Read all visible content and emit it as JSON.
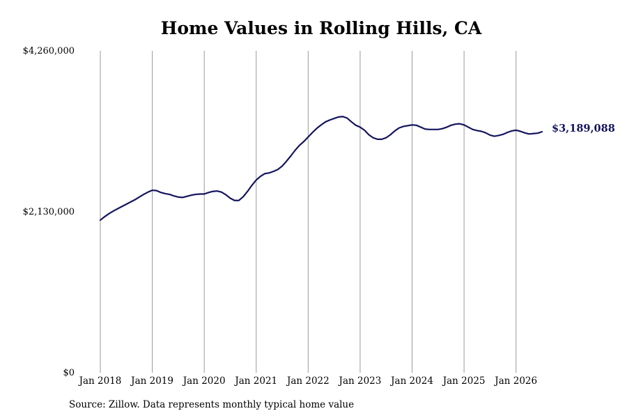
{
  "chart_data": {
    "type": "line",
    "title": "Home Values in Rolling Hills, CA",
    "xlabel": "",
    "ylabel": "",
    "ylim": [
      0,
      4260000
    ],
    "yticks": [
      {
        "value": 0,
        "label": "$0"
      },
      {
        "value": 2130000,
        "label": "$2,130,000"
      },
      {
        "value": 4260000,
        "label": "$4,260,000"
      }
    ],
    "xticks": [
      {
        "value": "2018-01",
        "label": "Jan 2018"
      },
      {
        "value": "2019-01",
        "label": "Jan 2019"
      },
      {
        "value": "2020-01",
        "label": "Jan 2020"
      },
      {
        "value": "2021-01",
        "label": "Jan 2021"
      },
      {
        "value": "2022-01",
        "label": "Jan 2022"
      },
      {
        "value": "2023-01",
        "label": "Jan 2023"
      },
      {
        "value": "2024-01",
        "label": "Jan 2024"
      },
      {
        "value": "2025-01",
        "label": "Jan 2025"
      },
      {
        "value": "2026-01",
        "label": "Jan 2026"
      }
    ],
    "xlim": [
      "2018-01",
      "2026-07"
    ],
    "grid": {
      "vertical": true,
      "horizontal": false
    },
    "line_color": "#14145e",
    "end_label": "$3,189,088",
    "series": [
      {
        "x": [
          "2018-01",
          "2018-02",
          "2018-03",
          "2018-04",
          "2018-05",
          "2018-06",
          "2018-07",
          "2018-08",
          "2018-09",
          "2018-10",
          "2018-11",
          "2018-12",
          "2019-01",
          "2019-02",
          "2019-03",
          "2019-04",
          "2019-05",
          "2019-06",
          "2019-07",
          "2019-08",
          "2019-09",
          "2019-10",
          "2019-11",
          "2019-12",
          "2020-01",
          "2020-02",
          "2020-03",
          "2020-04",
          "2020-05",
          "2020-06",
          "2020-07",
          "2020-08",
          "2020-09",
          "2020-10",
          "2020-11",
          "2020-12",
          "2021-01",
          "2021-02",
          "2021-03",
          "2021-04",
          "2021-05",
          "2021-06",
          "2021-07",
          "2021-08",
          "2021-09",
          "2021-10",
          "2021-11",
          "2021-12",
          "2022-01",
          "2022-02",
          "2022-03",
          "2022-04",
          "2022-05",
          "2022-06",
          "2022-07",
          "2022-08",
          "2022-09",
          "2022-10",
          "2022-11",
          "2022-12",
          "2023-01",
          "2023-02",
          "2023-03",
          "2023-04",
          "2023-05",
          "2023-06",
          "2023-07",
          "2023-08",
          "2023-09",
          "2023-10",
          "2023-11",
          "2023-12",
          "2024-01",
          "2024-02",
          "2024-03",
          "2024-04",
          "2024-05",
          "2024-06",
          "2024-07",
          "2024-08",
          "2024-09",
          "2024-10",
          "2024-11",
          "2024-12",
          "2025-01",
          "2025-02",
          "2025-03",
          "2025-04",
          "2025-05",
          "2025-06",
          "2025-07",
          "2025-08",
          "2025-09",
          "2025-10",
          "2025-11",
          "2025-12",
          "2026-01",
          "2026-02",
          "2026-03",
          "2026-04",
          "2026-05",
          "2026-06",
          "2026-07"
        ],
        "values": [
          2020000,
          2065000,
          2105000,
          2140000,
          2170000,
          2200000,
          2230000,
          2260000,
          2290000,
          2325000,
          2360000,
          2390000,
          2415000,
          2410000,
          2385000,
          2370000,
          2360000,
          2340000,
          2325000,
          2320000,
          2335000,
          2350000,
          2360000,
          2365000,
          2365000,
          2385000,
          2400000,
          2405000,
          2390000,
          2355000,
          2310000,
          2280000,
          2280000,
          2330000,
          2400000,
          2480000,
          2550000,
          2600000,
          2635000,
          2645000,
          2665000,
          2690000,
          2735000,
          2800000,
          2870000,
          2945000,
          3010000,
          3060000,
          3120000,
          3180000,
          3235000,
          3280000,
          3320000,
          3345000,
          3365000,
          3385000,
          3390000,
          3370000,
          3320000,
          3275000,
          3250000,
          3210000,
          3150000,
          3110000,
          3090000,
          3090000,
          3110000,
          3150000,
          3200000,
          3240000,
          3260000,
          3270000,
          3280000,
          3275000,
          3250000,
          3225000,
          3220000,
          3220000,
          3220000,
          3230000,
          3250000,
          3275000,
          3290000,
          3295000,
          3280000,
          3250000,
          3220000,
          3205000,
          3195000,
          3175000,
          3145000,
          3130000,
          3140000,
          3155000,
          3180000,
          3200000,
          3210000,
          3195000,
          3175000,
          3160000,
          3165000,
          3170000,
          3189088
        ]
      }
    ]
  },
  "source_note": "Source: Zillow. Data represents monthly typical home value"
}
